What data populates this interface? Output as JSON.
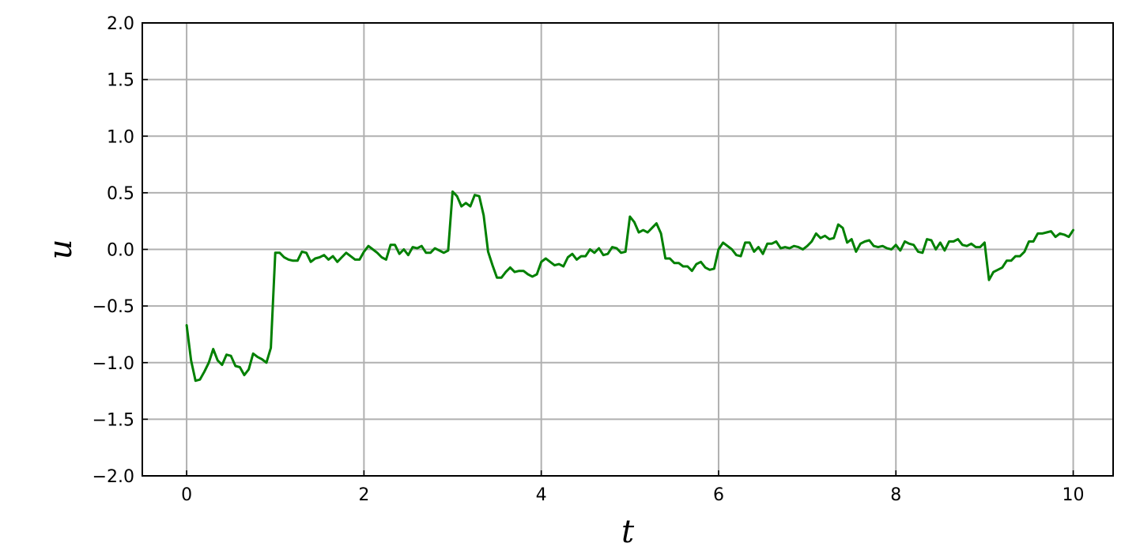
{
  "chart_data": {
    "type": "line",
    "title": "",
    "xlabel": "t",
    "ylabel": "u",
    "xlim": [
      -0.5,
      10.45
    ],
    "ylim": [
      -2.0,
      2.0
    ],
    "xticks": [
      0,
      2,
      4,
      6,
      8,
      10
    ],
    "xtick_labels": [
      "0",
      "2",
      "4",
      "6",
      "8",
      "10"
    ],
    "yticks": [
      -2.0,
      -1.5,
      -1.0,
      -0.5,
      0.0,
      0.5,
      1.0,
      1.5,
      2.0
    ],
    "ytick_labels": [
      "−2.0",
      "−1.5",
      "−1.0",
      "−0.5",
      "0.0",
      "0.5",
      "1.0",
      "1.5",
      "2.0"
    ],
    "grid": true,
    "legend": "none",
    "series": [
      {
        "color": "#008000",
        "points": [
          [
            0.0,
            -0.67
          ],
          [
            0.05,
            -0.98
          ],
          [
            0.1,
            -1.16
          ],
          [
            0.15,
            -1.15
          ],
          [
            0.2,
            -1.08
          ],
          [
            0.25,
            -1.0
          ],
          [
            0.3,
            -0.88
          ],
          [
            0.35,
            -0.98
          ],
          [
            0.4,
            -1.02
          ],
          [
            0.45,
            -0.93
          ],
          [
            0.5,
            -0.94
          ],
          [
            0.55,
            -1.03
          ],
          [
            0.6,
            -1.04
          ],
          [
            0.65,
            -1.11
          ],
          [
            0.7,
            -1.06
          ],
          [
            0.75,
            -0.92
          ],
          [
            0.8,
            -0.95
          ],
          [
            0.85,
            -0.97
          ],
          [
            0.9,
            -1.0
          ],
          [
            0.95,
            -0.87
          ],
          [
            1.0,
            -0.03
          ],
          [
            1.05,
            -0.03
          ],
          [
            1.1,
            -0.07
          ],
          [
            1.15,
            -0.09
          ],
          [
            1.2,
            -0.1
          ],
          [
            1.25,
            -0.1
          ],
          [
            1.3,
            -0.02
          ],
          [
            1.35,
            -0.03
          ],
          [
            1.4,
            -0.11
          ],
          [
            1.45,
            -0.08
          ],
          [
            1.5,
            -0.07
          ],
          [
            1.55,
            -0.05
          ],
          [
            1.6,
            -0.09
          ],
          [
            1.65,
            -0.06
          ],
          [
            1.7,
            -0.11
          ],
          [
            1.75,
            -0.07
          ],
          [
            1.8,
            -0.03
          ],
          [
            1.85,
            -0.06
          ],
          [
            1.9,
            -0.09
          ],
          [
            1.95,
            -0.09
          ],
          [
            2.0,
            -0.02
          ],
          [
            2.05,
            0.03
          ],
          [
            2.1,
            0.0
          ],
          [
            2.15,
            -0.03
          ],
          [
            2.2,
            -0.07
          ],
          [
            2.25,
            -0.09
          ],
          [
            2.3,
            0.04
          ],
          [
            2.35,
            0.04
          ],
          [
            2.4,
            -0.04
          ],
          [
            2.45,
            0.0
          ],
          [
            2.5,
            -0.05
          ],
          [
            2.55,
            0.02
          ],
          [
            2.6,
            0.01
          ],
          [
            2.65,
            0.03
          ],
          [
            2.7,
            -0.03
          ],
          [
            2.75,
            -0.03
          ],
          [
            2.8,
            0.01
          ],
          [
            2.85,
            -0.01
          ],
          [
            2.9,
            -0.03
          ],
          [
            2.95,
            -0.01
          ],
          [
            3.0,
            0.51
          ],
          [
            3.05,
            0.47
          ],
          [
            3.1,
            0.38
          ],
          [
            3.15,
            0.41
          ],
          [
            3.2,
            0.38
          ],
          [
            3.25,
            0.48
          ],
          [
            3.3,
            0.47
          ],
          [
            3.35,
            0.3
          ],
          [
            3.4,
            -0.02
          ],
          [
            3.45,
            -0.14
          ],
          [
            3.5,
            -0.25
          ],
          [
            3.55,
            -0.25
          ],
          [
            3.6,
            -0.2
          ],
          [
            3.65,
            -0.16
          ],
          [
            3.7,
            -0.2
          ],
          [
            3.75,
            -0.19
          ],
          [
            3.8,
            -0.19
          ],
          [
            3.85,
            -0.22
          ],
          [
            3.9,
            -0.24
          ],
          [
            3.95,
            -0.22
          ],
          [
            4.0,
            -0.11
          ],
          [
            4.05,
            -0.08
          ],
          [
            4.1,
            -0.11
          ],
          [
            4.15,
            -0.14
          ],
          [
            4.2,
            -0.13
          ],
          [
            4.25,
            -0.15
          ],
          [
            4.3,
            -0.07
          ],
          [
            4.35,
            -0.04
          ],
          [
            4.4,
            -0.09
          ],
          [
            4.45,
            -0.06
          ],
          [
            4.5,
            -0.06
          ],
          [
            4.55,
            0.0
          ],
          [
            4.6,
            -0.03
          ],
          [
            4.65,
            0.01
          ],
          [
            4.7,
            -0.05
          ],
          [
            4.75,
            -0.04
          ],
          [
            4.8,
            0.02
          ],
          [
            4.85,
            0.01
          ],
          [
            4.9,
            -0.03
          ],
          [
            4.95,
            -0.02
          ],
          [
            5.0,
            0.29
          ],
          [
            5.05,
            0.24
          ],
          [
            5.1,
            0.15
          ],
          [
            5.15,
            0.17
          ],
          [
            5.2,
            0.15
          ],
          [
            5.25,
            0.19
          ],
          [
            5.3,
            0.23
          ],
          [
            5.35,
            0.14
          ],
          [
            5.4,
            -0.08
          ],
          [
            5.45,
            -0.08
          ],
          [
            5.5,
            -0.12
          ],
          [
            5.55,
            -0.12
          ],
          [
            5.6,
            -0.15
          ],
          [
            5.65,
            -0.15
          ],
          [
            5.7,
            -0.19
          ],
          [
            5.75,
            -0.13
          ],
          [
            5.8,
            -0.11
          ],
          [
            5.85,
            -0.16
          ],
          [
            5.9,
            -0.18
          ],
          [
            5.95,
            -0.17
          ],
          [
            6.0,
            0.0
          ],
          [
            6.05,
            0.06
          ],
          [
            6.1,
            0.03
          ],
          [
            6.15,
            0.0
          ],
          [
            6.2,
            -0.05
          ],
          [
            6.25,
            -0.06
          ],
          [
            6.3,
            0.06
          ],
          [
            6.35,
            0.06
          ],
          [
            6.4,
            -0.02
          ],
          [
            6.45,
            0.02
          ],
          [
            6.5,
            -0.04
          ],
          [
            6.55,
            0.05
          ],
          [
            6.6,
            0.05
          ],
          [
            6.65,
            0.07
          ],
          [
            6.7,
            0.01
          ],
          [
            6.75,
            0.02
          ],
          [
            6.8,
            0.01
          ],
          [
            6.85,
            0.03
          ],
          [
            6.9,
            0.02
          ],
          [
            6.95,
            0.0
          ],
          [
            7.0,
            0.03
          ],
          [
            7.05,
            0.07
          ],
          [
            7.1,
            0.14
          ],
          [
            7.15,
            0.1
          ],
          [
            7.2,
            0.12
          ],
          [
            7.25,
            0.09
          ],
          [
            7.3,
            0.1
          ],
          [
            7.35,
            0.22
          ],
          [
            7.4,
            0.19
          ],
          [
            7.45,
            0.06
          ],
          [
            7.5,
            0.09
          ],
          [
            7.55,
            -0.02
          ],
          [
            7.6,
            0.05
          ],
          [
            7.65,
            0.07
          ],
          [
            7.7,
            0.08
          ],
          [
            7.75,
            0.03
          ],
          [
            7.8,
            0.02
          ],
          [
            7.85,
            0.03
          ],
          [
            7.9,
            0.01
          ],
          [
            7.95,
            0.0
          ],
          [
            8.0,
            0.04
          ],
          [
            8.05,
            -0.01
          ],
          [
            8.1,
            0.07
          ],
          [
            8.15,
            0.05
          ],
          [
            8.2,
            0.04
          ],
          [
            8.25,
            -0.02
          ],
          [
            8.3,
            -0.03
          ],
          [
            8.35,
            0.09
          ],
          [
            8.4,
            0.08
          ],
          [
            8.45,
            0.0
          ],
          [
            8.5,
            0.06
          ],
          [
            8.55,
            -0.01
          ],
          [
            8.6,
            0.07
          ],
          [
            8.65,
            0.07
          ],
          [
            8.7,
            0.09
          ],
          [
            8.75,
            0.04
          ],
          [
            8.8,
            0.03
          ],
          [
            8.85,
            0.05
          ],
          [
            8.9,
            0.02
          ],
          [
            8.95,
            0.02
          ],
          [
            9.0,
            0.06
          ],
          [
            9.05,
            -0.27
          ],
          [
            9.1,
            -0.2
          ],
          [
            9.15,
            -0.18
          ],
          [
            9.2,
            -0.16
          ],
          [
            9.25,
            -0.1
          ],
          [
            9.3,
            -0.1
          ],
          [
            9.35,
            -0.06
          ],
          [
            9.4,
            -0.06
          ],
          [
            9.45,
            -0.02
          ],
          [
            9.5,
            0.07
          ],
          [
            9.55,
            0.07
          ],
          [
            9.6,
            0.14
          ],
          [
            9.65,
            0.14
          ],
          [
            9.7,
            0.15
          ],
          [
            9.75,
            0.16
          ],
          [
            9.8,
            0.11
          ],
          [
            9.85,
            0.14
          ],
          [
            9.9,
            0.13
          ],
          [
            9.95,
            0.11
          ],
          [
            10.0,
            0.17
          ]
        ]
      }
    ]
  }
}
